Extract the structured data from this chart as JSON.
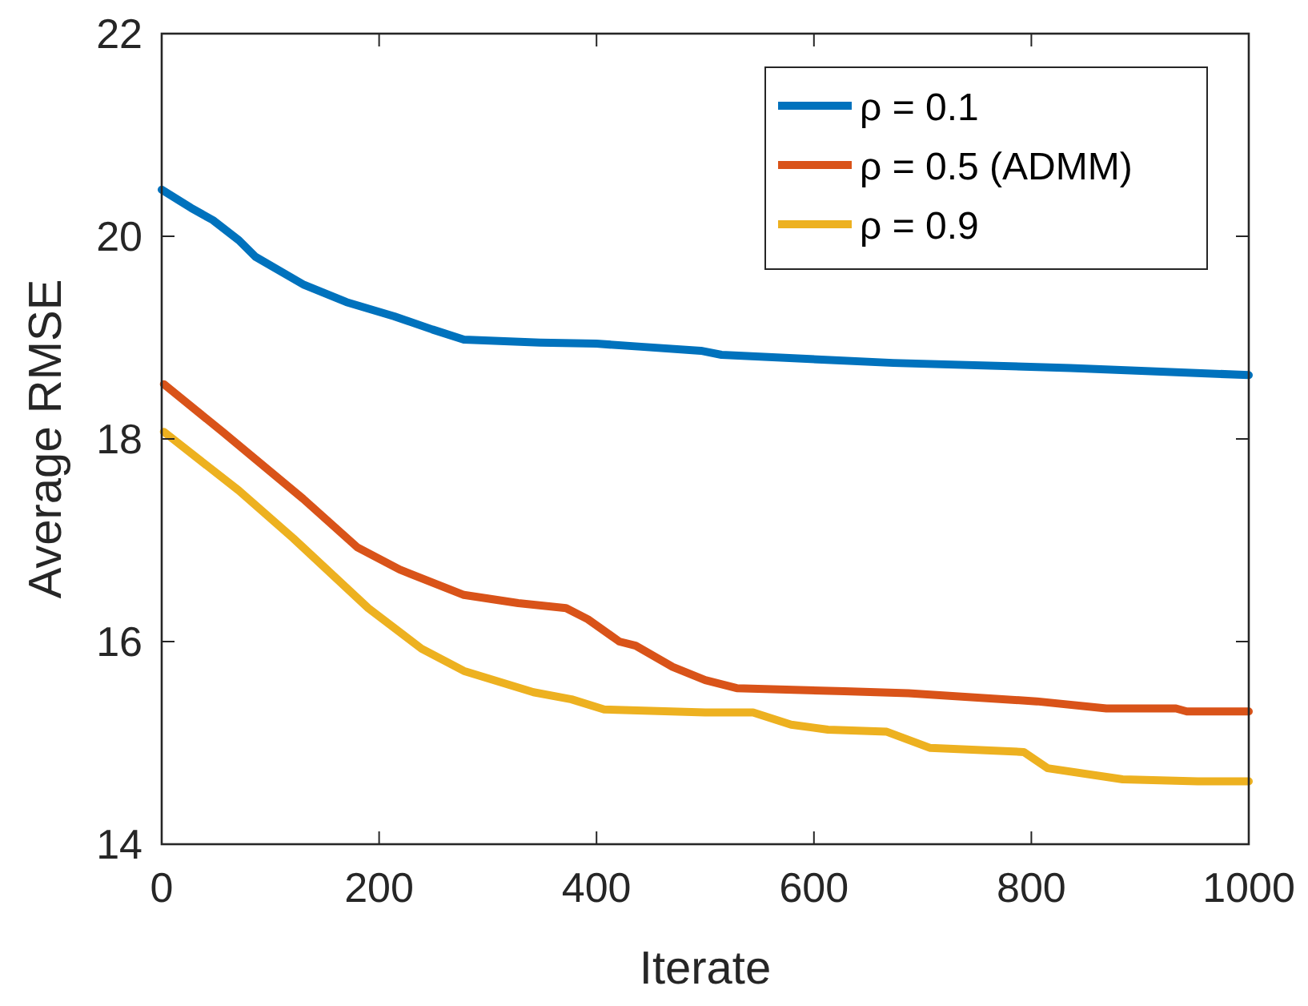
{
  "chart_data": {
    "type": "line",
    "xlabel": "Iterate",
    "ylabel": "Average RMSE",
    "xlim": [
      0,
      1000
    ],
    "ylim": [
      14,
      22
    ],
    "xticks": [
      0,
      200,
      400,
      600,
      800,
      1000
    ],
    "yticks": [
      14,
      16,
      18,
      20,
      22
    ],
    "grid": false,
    "legend": "top right",
    "line_style": "solid",
    "marker": "none",
    "series": [
      {
        "name": "ρ = 0.1",
        "color": "#0072bd",
        "x": [
          0,
          27,
          47,
          71,
          86,
          131,
          170,
          214,
          249,
          278,
          348,
          400,
          441,
          496,
          515,
          673,
          836,
          1000
        ],
        "values": [
          20.46,
          20.28,
          20.16,
          19.96,
          19.8,
          19.52,
          19.35,
          19.21,
          19.08,
          18.98,
          18.95,
          18.94,
          18.91,
          18.87,
          18.83,
          18.75,
          18.7,
          18.63
        ]
      },
      {
        "name": "ρ = 0.5 (ADMM)",
        "color": "#d95319",
        "x": [
          2,
          56,
          130,
          180,
          219,
          278,
          328,
          372,
          392,
          421,
          436,
          470,
          500,
          529,
          628,
          687,
          805,
          869,
          933,
          943,
          1000
        ],
        "values": [
          18.54,
          18.07,
          17.41,
          16.93,
          16.71,
          16.46,
          16.38,
          16.33,
          16.22,
          16.0,
          15.96,
          15.75,
          15.62,
          15.54,
          15.51,
          15.49,
          15.41,
          15.34,
          15.34,
          15.31,
          15.31
        ]
      },
      {
        "name": "ρ = 0.9",
        "color": "#edb120",
        "x": [
          2,
          71,
          121,
          190,
          239,
          278,
          342,
          377,
          407,
          500,
          544,
          579,
          613,
          667,
          707,
          793,
          815,
          884,
          953,
          1000
        ],
        "values": [
          18.07,
          17.49,
          17.02,
          16.33,
          15.93,
          15.71,
          15.5,
          15.43,
          15.33,
          15.3,
          15.3,
          15.18,
          15.13,
          15.11,
          14.95,
          14.91,
          14.75,
          14.64,
          14.62,
          14.62
        ]
      }
    ]
  }
}
